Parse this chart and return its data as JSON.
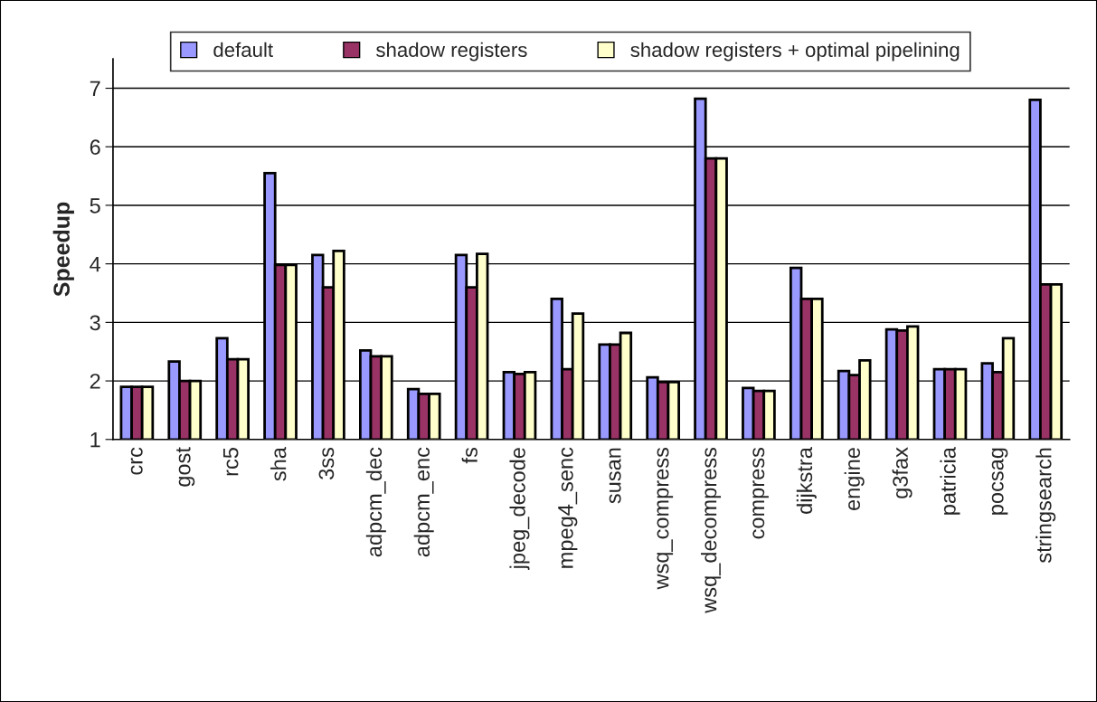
{
  "chart_data": {
    "type": "bar",
    "ylabel": "Speedup",
    "categories": [
      "crc",
      "gost",
      "rc5",
      "sha",
      "3ss",
      "adpcm_dec",
      "adpcm_enc",
      "fs",
      "jpeg_decode",
      "mpeg4_senc",
      "susan",
      "wsq_compress",
      "wsq_decompress",
      "compress",
      "dijkstra",
      "engine",
      "g3fax",
      "patricia",
      "pocsag",
      "stringsearch"
    ],
    "series": [
      {
        "name": "default",
        "color": "#9999ff",
        "values": [
          1.9,
          2.33,
          2.73,
          5.55,
          4.15,
          2.52,
          1.86,
          4.15,
          2.15,
          3.4,
          2.62,
          2.06,
          6.82,
          1.88,
          3.93,
          2.17,
          2.88,
          2.2,
          2.3,
          6.8
        ]
      },
      {
        "name": "shadow registers",
        "color": "#993366",
        "values": [
          1.9,
          2.0,
          2.37,
          3.98,
          3.6,
          2.42,
          1.78,
          3.6,
          2.12,
          2.2,
          2.62,
          1.98,
          5.8,
          1.83,
          3.4,
          2.1,
          2.86,
          2.2,
          2.15,
          3.65
        ]
      },
      {
        "name": "shadow registers + optimal pipelining",
        "color": "#ffffcc",
        "values": [
          1.9,
          2.0,
          2.37,
          3.98,
          4.22,
          2.42,
          1.78,
          4.17,
          2.15,
          3.15,
          2.82,
          1.98,
          5.8,
          1.83,
          3.4,
          2.35,
          2.93,
          2.2,
          2.73,
          3.65
        ]
      }
    ],
    "ylim": [
      1,
      7.5
    ],
    "yticks": [
      1,
      2,
      3,
      4,
      5,
      6,
      7
    ],
    "grid": "y",
    "legend": "top"
  }
}
